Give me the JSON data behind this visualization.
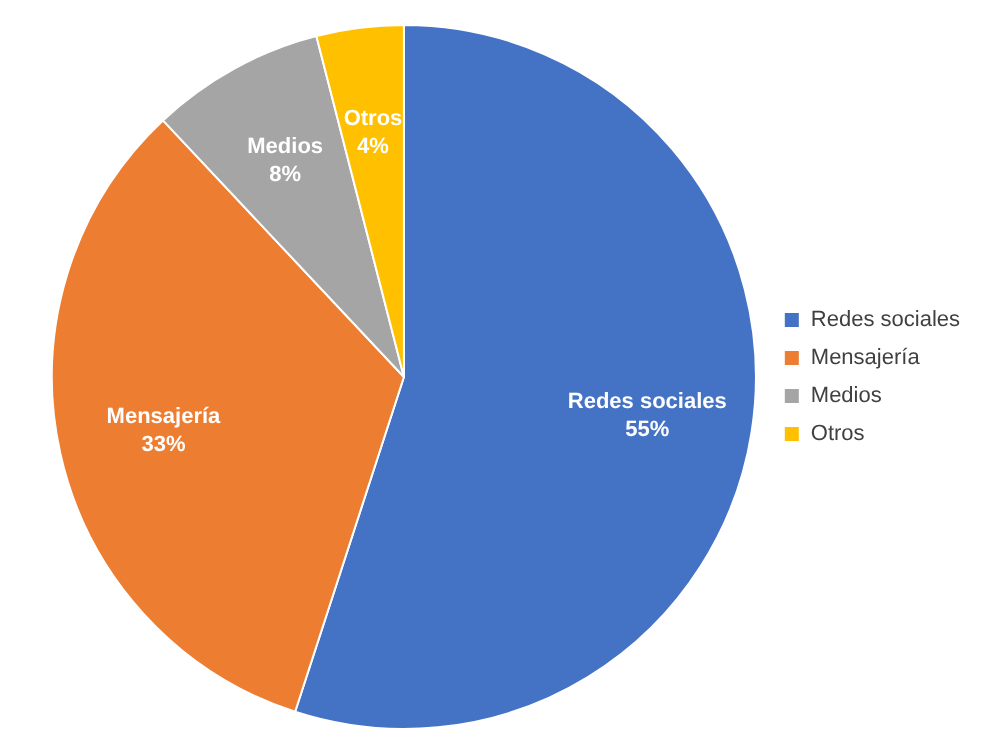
{
  "chart_data": {
    "type": "pie",
    "categories": [
      "Redes sociales",
      "Mensajería",
      "Medios",
      "Otros"
    ],
    "values": [
      55,
      33,
      8,
      4
    ],
    "colors": [
      "#4472c4",
      "#ed7d31",
      "#a5a5a5",
      "#ffc000"
    ],
    "value_labels": [
      "55%",
      "33%",
      "8%",
      "4%"
    ],
    "legend": "right"
  }
}
